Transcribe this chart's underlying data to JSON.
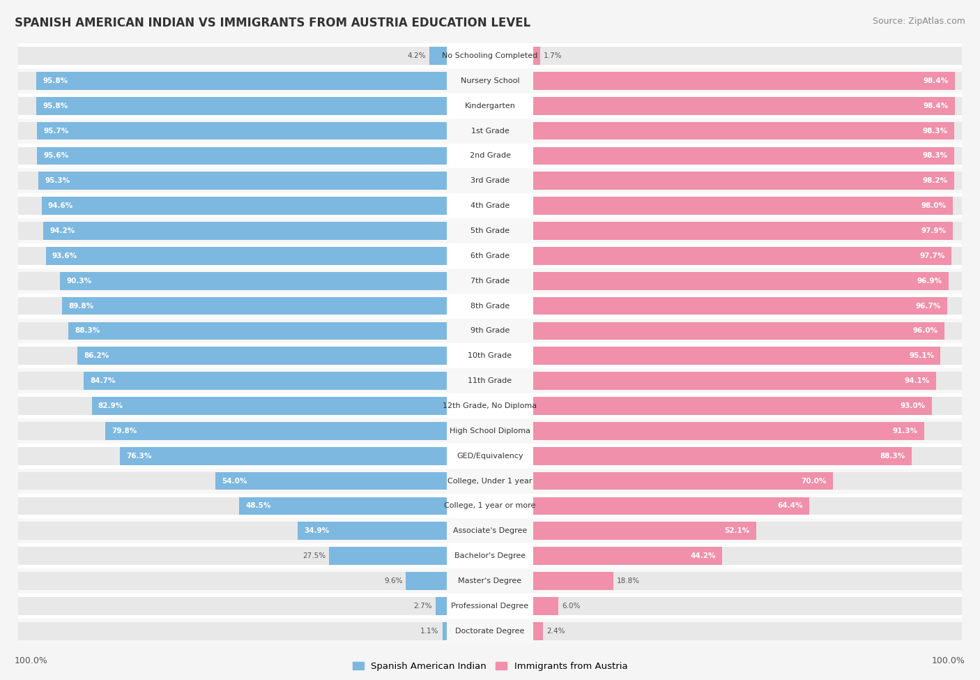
{
  "title": "SPANISH AMERICAN INDIAN VS IMMIGRANTS FROM AUSTRIA EDUCATION LEVEL",
  "source": "Source: ZipAtlas.com",
  "categories": [
    "No Schooling Completed",
    "Nursery School",
    "Kindergarten",
    "1st Grade",
    "2nd Grade",
    "3rd Grade",
    "4th Grade",
    "5th Grade",
    "6th Grade",
    "7th Grade",
    "8th Grade",
    "9th Grade",
    "10th Grade",
    "11th Grade",
    "12th Grade, No Diploma",
    "High School Diploma",
    "GED/Equivalency",
    "College, Under 1 year",
    "College, 1 year or more",
    "Associate's Degree",
    "Bachelor's Degree",
    "Master's Degree",
    "Professional Degree",
    "Doctorate Degree"
  ],
  "left_values": [
    4.2,
    95.8,
    95.8,
    95.7,
    95.6,
    95.3,
    94.6,
    94.2,
    93.6,
    90.3,
    89.8,
    88.3,
    86.2,
    84.7,
    82.9,
    79.8,
    76.3,
    54.0,
    48.5,
    34.9,
    27.5,
    9.6,
    2.7,
    1.1
  ],
  "right_values": [
    1.7,
    98.4,
    98.4,
    98.3,
    98.3,
    98.2,
    98.0,
    97.9,
    97.7,
    96.9,
    96.7,
    96.0,
    95.1,
    94.1,
    93.0,
    91.3,
    88.3,
    70.0,
    64.4,
    52.1,
    44.2,
    18.8,
    6.0,
    2.4
  ],
  "left_color": "#7db8e0",
  "right_color": "#f090aa",
  "row_color_odd": "#ffffff",
  "row_color_even": "#f7f7f7",
  "bg_color": "#f5f5f5",
  "bar_bg_color": "#e8e8e8",
  "left_label": "Spanish American Indian",
  "right_label": "Immigrants from Austria",
  "left_axis_label": "100.0%",
  "right_axis_label": "100.0%",
  "title_fontsize": 12,
  "source_fontsize": 9,
  "label_fontsize": 8,
  "value_fontsize": 7.5
}
